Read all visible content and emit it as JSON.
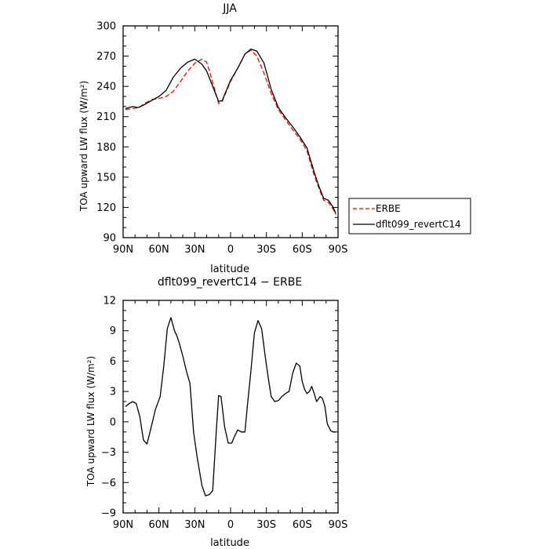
{
  "chart_data": [
    {
      "type": "line",
      "title": "JJA",
      "xlabel": "latitude",
      "ylabel": "TOA upward LW flux (W/m²)",
      "xlim": [
        90,
        -90
      ],
      "ylim": [
        90,
        300
      ],
      "xticks": [
        90,
        60,
        30,
        0,
        -30,
        -60,
        -90
      ],
      "xticklabels": [
        "90N",
        "60N",
        "30N",
        "0",
        "30S",
        "60S",
        "90S"
      ],
      "yticks": [
        90,
        120,
        150,
        180,
        210,
        240,
        270,
        300
      ],
      "yticklabels": [
        "90",
        "120",
        "150",
        "180",
        "210",
        "240",
        "270",
        "300"
      ],
      "legend": {
        "position": "right",
        "entries": [
          {
            "label": "ERBE",
            "color": "#ff0000",
            "dash": "dashed"
          },
          {
            "label": "dflt099_revertC14",
            "color": "#000000",
            "dash": "solid"
          }
        ]
      },
      "series": [
        {
          "name": "ERBE",
          "color": "#ff0000",
          "dash": "dashed",
          "x": [
            88,
            82,
            77,
            72,
            66,
            60,
            54,
            48,
            42,
            36,
            30,
            24,
            20,
            15,
            10,
            7,
            0,
            -6,
            -12,
            -17,
            -22,
            -28,
            -34,
            -40,
            -46,
            -52,
            -58,
            -64,
            -70,
            -74,
            -78,
            -82,
            -86,
            -88
          ],
          "y": [
            217,
            218,
            219,
            223,
            227,
            228,
            230,
            235,
            245,
            255,
            263,
            267,
            264,
            244,
            223,
            225,
            245,
            258,
            272,
            276,
            270,
            253,
            233,
            217,
            207,
            197,
            188,
            176,
            152,
            139,
            127,
            125,
            118,
            113
          ]
        },
        {
          "name": "dflt099_revertC14",
          "color": "#000000",
          "dash": "solid",
          "x": [
            88,
            82,
            77,
            72,
            66,
            60,
            54,
            48,
            42,
            36,
            30,
            24,
            20,
            15,
            10,
            7,
            0,
            -6,
            -12,
            -17,
            -22,
            -28,
            -34,
            -40,
            -46,
            -52,
            -58,
            -64,
            -70,
            -74,
            -78,
            -82,
            -86,
            -88
          ],
          "y": [
            218,
            220,
            219,
            222,
            226,
            230,
            236,
            249,
            258,
            264,
            267,
            262,
            255,
            240,
            225,
            226,
            246,
            258,
            272,
            277,
            275,
            263,
            237,
            219,
            209,
            200,
            190,
            179,
            155,
            141,
            129,
            127,
            120,
            114
          ]
        }
      ]
    },
    {
      "type": "line",
      "title": "dflt099_revertC14 − ERBE",
      "xlabel": "latitude",
      "ylabel": "TOA upward LW flux (W/m²)",
      "xlim": [
        90,
        -90
      ],
      "ylim": [
        -9,
        12
      ],
      "xticks": [
        90,
        60,
        30,
        0,
        -30,
        -60,
        -90
      ],
      "xticklabels": [
        "90N",
        "60N",
        "30N",
        "0",
        "30S",
        "60S",
        "90S"
      ],
      "yticks": [
        -9,
        -6,
        -3,
        0,
        3,
        6,
        9,
        12
      ],
      "yticklabels": [
        "−9",
        "−6",
        "−3",
        "0",
        "3",
        "6",
        "9",
        "12"
      ],
      "series": [
        {
          "color": "#000000",
          "dash": "solid",
          "x": [
            88,
            85,
            82,
            79,
            76,
            73,
            70,
            66,
            63,
            59,
            56,
            53,
            50,
            47,
            45,
            43,
            40,
            37,
            34,
            31,
            28,
            24,
            21,
            18,
            15,
            12,
            10,
            8,
            5,
            2,
            -1,
            -3,
            -6,
            -9,
            -12,
            -14,
            -17,
            -20,
            -23,
            -26,
            -29,
            -32,
            -34,
            -37,
            -40,
            -43,
            -46,
            -49,
            -52,
            -55,
            -58,
            -60,
            -62,
            -64,
            -66,
            -68,
            -70,
            -72,
            -75,
            -77,
            -79,
            -81,
            -84,
            -86,
            -88
          ],
          "y": [
            1.5,
            1.8,
            2.0,
            1.8,
            0.5,
            -1.8,
            -2.2,
            -0.3,
            1.2,
            2.5,
            5.5,
            9.2,
            10.3,
            9.0,
            8.5,
            7.8,
            6.5,
            5.0,
            3.8,
            -1.0,
            -3.5,
            -6.3,
            -7.3,
            -7.2,
            -6.8,
            -1.0,
            2.6,
            2.5,
            -0.5,
            -2.1,
            -2.1,
            -1.5,
            -0.8,
            -1.0,
            -1.0,
            1.5,
            5.0,
            8.8,
            10.0,
            9.2,
            6.5,
            4.0,
            2.5,
            2.0,
            2.1,
            2.5,
            2.8,
            3.0,
            4.8,
            5.8,
            5.5,
            4.0,
            3.2,
            2.8,
            3.0,
            3.5,
            2.8,
            2.0,
            2.5,
            2.3,
            1.5,
            -0.2,
            -0.9,
            -1.0,
            -1.0
          ]
        }
      ]
    }
  ]
}
